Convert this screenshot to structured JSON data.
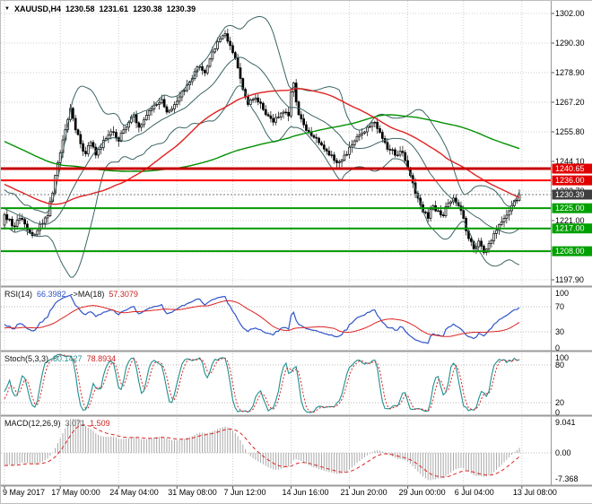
{
  "header": {
    "symbol": "XAUUSD,H4",
    "open": "1230.58",
    "high": "1231.61",
    "low": "1230.38",
    "close": "1230.39"
  },
  "colors": {
    "background": "#ffffff",
    "grid": "#cdcdcd",
    "text": "#000000",
    "candle_outline": "#000000",
    "candle_up": "#ffffff",
    "candle_down": "#000000",
    "bollinger": "#3c6464",
    "ma_fast": "#e02020",
    "ma_slow": "#009000",
    "hline_res_major": "#c80000",
    "hline_res": "#ff0000",
    "hline_sup": "#009900",
    "res_label_bg": "#e00000",
    "sup_label_bg": "#00a000",
    "current_label_bg": "#3f3f3f",
    "rsi_line": "#2f55c8",
    "rsi_ma": "#dd2222",
    "stoch_main": "#1e9090",
    "stoch_signal": "#dd2222",
    "macd_hist": "#a8a8a8",
    "macd_signal": "#dd2222",
    "panel_border": "#9a9a9a"
  },
  "chart_data": [
    {
      "type": "candlestick",
      "name": "XAUUSD H4 price panel",
      "bars": 204,
      "price_axis": {
        "top_price": 1302.0,
        "tick_step": 11.7
      },
      "y_tick_labels": [
        "1302.00",
        "1290.30",
        "1278.90",
        "1267.20",
        "1255.80",
        "1244.10",
        "1232.70",
        "1221.00",
        "1209.60",
        "1197.90"
      ],
      "x_tick_labels": [
        "9 May 2017",
        "17 May 00:00",
        "24 May 04:00",
        "31 May 08:00",
        "7 Jun 12:00",
        "14 Jun 16:00",
        "21 Jun 20:00",
        "29 Jun 00:00",
        "6 Jul 04:00",
        "13 Jul 08:00"
      ],
      "x_tick_bars": [
        0,
        22,
        45,
        68,
        90,
        113,
        136,
        159,
        181,
        204
      ],
      "hlines": [
        {
          "label": "1240.65",
          "price": 1240.65,
          "role": "resistance",
          "line_color_key": "hline_res_major",
          "label_bg_key": "res_label_bg",
          "thickness": 3
        },
        {
          "label": "1236.00",
          "price": 1236.0,
          "role": "resistance",
          "line_color_key": "hline_res",
          "label_bg_key": "res_label_bg",
          "thickness": 2
        },
        {
          "label": "1230.39",
          "price": 1230.39,
          "role": "current_price",
          "line_color_key": "",
          "label_bg_key": "current_label_bg",
          "thickness": 1
        },
        {
          "label": "1225.00",
          "price": 1225.0,
          "role": "support",
          "line_color_key": "hline_sup",
          "label_bg_key": "sup_label_bg",
          "thickness": 2
        },
        {
          "label": "1217.00",
          "price": 1217.0,
          "role": "support",
          "line_color_key": "hline_sup",
          "label_bg_key": "sup_label_bg",
          "thickness": 2
        },
        {
          "label": "1208.00",
          "price": 1208.0,
          "role": "support",
          "line_color_key": "hline_sup",
          "label_bg_key": "sup_label_bg",
          "thickness": 2
        }
      ],
      "overlays": {
        "bollinger_period": 20,
        "bollinger_dev": 2,
        "ma_fast_period": 60,
        "ma_slow_period": 130
      },
      "history_for_averages": {
        "bars": 140,
        "start_price": 1288,
        "end_price": 1221
      },
      "close_path_anchors": [
        [
          0,
          1222.5
        ],
        [
          3,
          1218
        ],
        [
          6,
          1221
        ],
        [
          9,
          1216.5
        ],
        [
          12,
          1214.5
        ],
        [
          15,
          1219
        ],
        [
          17,
          1222
        ],
        [
          19,
          1231
        ],
        [
          21,
          1243
        ],
        [
          23,
          1252
        ],
        [
          25,
          1260
        ],
        [
          26,
          1264.5
        ],
        [
          28,
          1256
        ],
        [
          30,
          1250.5
        ],
        [
          32,
          1246.5
        ],
        [
          34,
          1251
        ],
        [
          36,
          1246
        ],
        [
          38,
          1249
        ],
        [
          40,
          1252.5
        ],
        [
          43,
          1255
        ],
        [
          45,
          1251.5
        ],
        [
          47,
          1256
        ],
        [
          49,
          1259
        ],
        [
          51,
          1262
        ],
        [
          53,
          1257
        ],
        [
          55,
          1260
        ],
        [
          57,
          1263.5
        ],
        [
          60,
          1266
        ],
        [
          62,
          1268
        ],
        [
          64,
          1263
        ],
        [
          67,
          1266
        ],
        [
          69,
          1269
        ],
        [
          71,
          1271.5
        ],
        [
          73,
          1275
        ],
        [
          75,
          1279
        ],
        [
          77,
          1281
        ],
        [
          79,
          1278.5
        ],
        [
          81,
          1284
        ],
        [
          83,
          1288
        ],
        [
          85,
          1292
        ],
        [
          87,
          1294
        ],
        [
          88,
          1291
        ],
        [
          90,
          1286.5
        ],
        [
          92,
          1280.5
        ],
        [
          94,
          1272
        ],
        [
          96,
          1266
        ],
        [
          98,
          1268
        ],
        [
          100,
          1267
        ],
        [
          102,
          1264
        ],
        [
          104,
          1261.5
        ],
        [
          106,
          1259
        ],
        [
          108,
          1261
        ],
        [
          110,
          1263
        ],
        [
          112,
          1261.5
        ],
        [
          113,
          1271
        ],
        [
          114,
          1274.5
        ],
        [
          115,
          1267
        ],
        [
          116,
          1262
        ],
        [
          118,
          1258
        ],
        [
          120,
          1255
        ],
        [
          122,
          1253
        ],
        [
          125,
          1250
        ],
        [
          128,
          1246
        ],
        [
          131,
          1243
        ],
        [
          134,
          1246
        ],
        [
          137,
          1250
        ],
        [
          140,
          1254
        ],
        [
          143,
          1257
        ],
        [
          146,
          1259
        ],
        [
          148,
          1255
        ],
        [
          150,
          1251
        ],
        [
          152,
          1248
        ],
        [
          155,
          1246
        ],
        [
          157,
          1247
        ],
        [
          159,
          1241
        ],
        [
          161,
          1235
        ],
        [
          163,
          1229
        ],
        [
          165,
          1223.5
        ],
        [
          167,
          1221
        ],
        [
          169,
          1226
        ],
        [
          171,
          1224
        ],
        [
          173,
          1222
        ],
        [
          175,
          1227
        ],
        [
          177,
          1229
        ],
        [
          179,
          1226
        ],
        [
          181,
          1221
        ],
        [
          183,
          1213
        ],
        [
          185,
          1209
        ],
        [
          187,
          1212
        ],
        [
          189,
          1207.5
        ],
        [
          191,
          1211
        ],
        [
          193,
          1215
        ],
        [
          195,
          1218.5
        ],
        [
          197,
          1221
        ],
        [
          199,
          1224
        ],
        [
          201,
          1228
        ],
        [
          203,
          1230.39
        ]
      ],
      "last_close": 1230.39
    },
    {
      "type": "line",
      "name": "RSI panel",
      "label": {
        "name": "RSI(14)",
        "value": "66.3982",
        "applied": "->MA(18)",
        "applied_value": "57.3079"
      },
      "period": 14,
      "ma_period": 18,
      "levels": [
        70,
        30
      ],
      "tick_values": [
        100,
        70,
        30,
        0
      ],
      "y_tick_labels": [
        "100",
        "70",
        "30",
        "0"
      ],
      "range": [
        0,
        100
      ]
    },
    {
      "type": "line",
      "name": "Stochastic panel",
      "label": {
        "name": "Stoch(5,3,3)",
        "value": "80.1427",
        "signal_value": "78.8934"
      },
      "k": 5,
      "d": 3,
      "slowing": 3,
      "levels": [
        80,
        20
      ],
      "tick_values": [
        100,
        80,
        20,
        0
      ],
      "y_tick_labels": [
        "100",
        "80",
        "20",
        "0"
      ],
      "range": [
        0,
        100
      ]
    },
    {
      "type": "histogram",
      "name": "MACD panel",
      "label": {
        "name": "MACD(12,26,9)",
        "value": "3.071",
        "signal_value": "1.509"
      },
      "fast": 12,
      "slow": 26,
      "signal": 9,
      "levels": [
        0
      ],
      "tick_values": [
        9.041,
        0,
        -7.368
      ],
      "y_tick_labels": [
        "9.041",
        "0.00",
        "-7.368"
      ],
      "range": [
        -7.368,
        9.041
      ]
    }
  ]
}
